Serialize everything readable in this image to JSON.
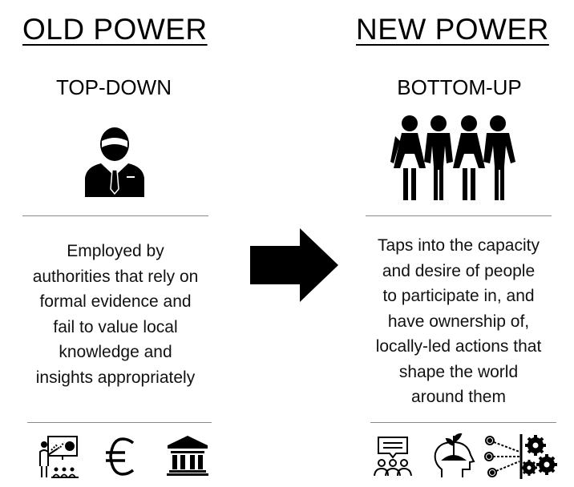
{
  "left": {
    "heading": "OLD POWER",
    "subheading": "TOP-DOWN",
    "description_lines": [
      "Employed by",
      "authorities that rely on",
      "formal evidence and",
      "fail to value local",
      "knowledge and",
      "insights appropriately"
    ],
    "icons": [
      "presenter-board-icon",
      "euro-icon",
      "bank-building-icon"
    ],
    "main_icon": "businessman-icon"
  },
  "right": {
    "heading": "NEW POWER",
    "subheading": "BOTTOM-UP",
    "description_lines": [
      "Taps into the capacity",
      "and desire of people",
      "to participate in, and",
      "have ownership of,",
      "locally-led actions that",
      "shape the world",
      "around them"
    ],
    "icons": [
      "group-discussion-icon",
      "head-growth-icon",
      "network-gears-icon"
    ],
    "main_icon": "people-group-icon"
  },
  "arrow": "right-arrow-icon",
  "colors": {
    "text": "#000000",
    "rule": "#8a8a8a",
    "background": "#ffffff"
  }
}
